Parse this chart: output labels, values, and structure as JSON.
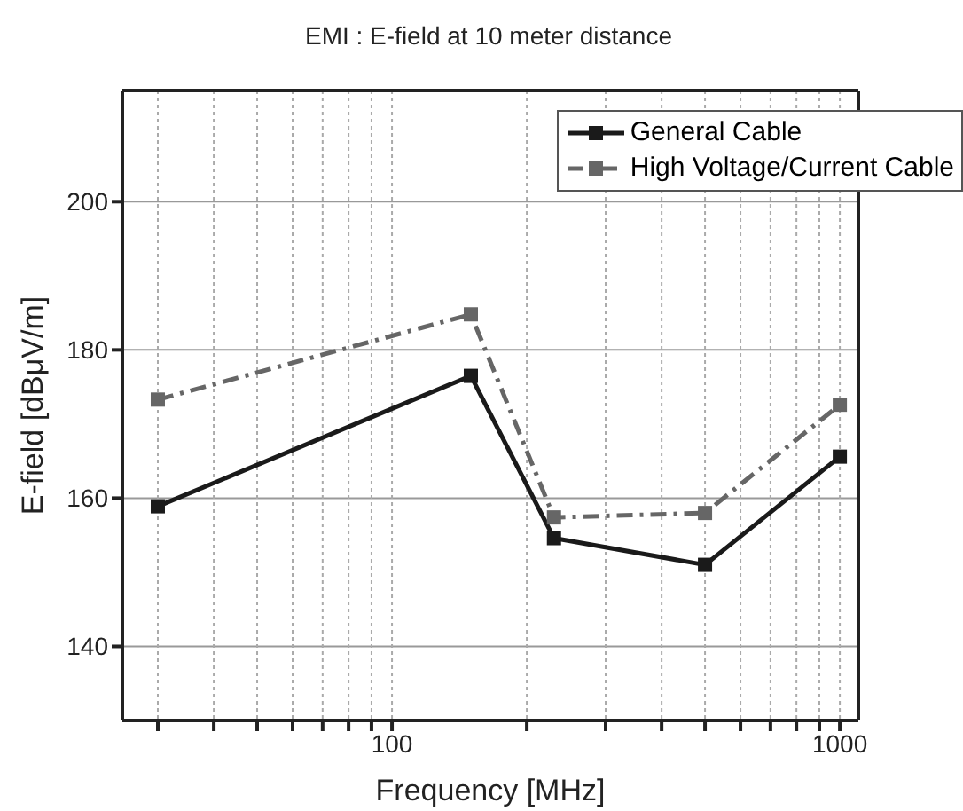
{
  "chart_data": {
    "type": "line",
    "title": "EMI : E-field at 10 meter distance",
    "xlabel": "Frequency [MHz]",
    "ylabel": "E-field [dBμV/m]",
    "log": "x",
    "xlim": [
      25,
      1100
    ],
    "xticks": [
      {
        "value": 30,
        "label": null
      },
      {
        "value": 40,
        "label": null
      },
      {
        "value": 50,
        "label": null
      },
      {
        "value": 60,
        "label": null
      },
      {
        "value": 70,
        "label": null
      },
      {
        "value": 80,
        "label": null
      },
      {
        "value": 90,
        "label": null
      },
      100,
      {
        "value": 200,
        "label": null
      },
      {
        "value": 300,
        "label": null
      },
      {
        "value": 400,
        "label": null
      },
      {
        "value": 500,
        "label": null
      },
      {
        "value": 600,
        "label": null
      },
      {
        "value": 700,
        "label": null
      },
      {
        "value": 800,
        "label": null
      },
      {
        "value": 900,
        "label": null
      },
      1000
    ],
    "ylim": [
      130,
      215
    ],
    "yticks": [
      140,
      160,
      180,
      200
    ],
    "grid": true,
    "legend": "top right",
    "x": [
      30,
      150,
      230,
      500,
      1000
    ],
    "series": [
      {
        "name": "General Cable",
        "color": "#1a1a1a",
        "values": [
          158.9,
          176.5,
          154.6,
          151,
          165.6
        ],
        "marker": "square",
        "line_style": "solid"
      },
      {
        "name": "High Voltage/Current Cable",
        "color": "#666666",
        "values": [
          173.3,
          184.8,
          157.4,
          158,
          172.6
        ],
        "marker": "square",
        "line_style": "dashed"
      }
    ]
  }
}
